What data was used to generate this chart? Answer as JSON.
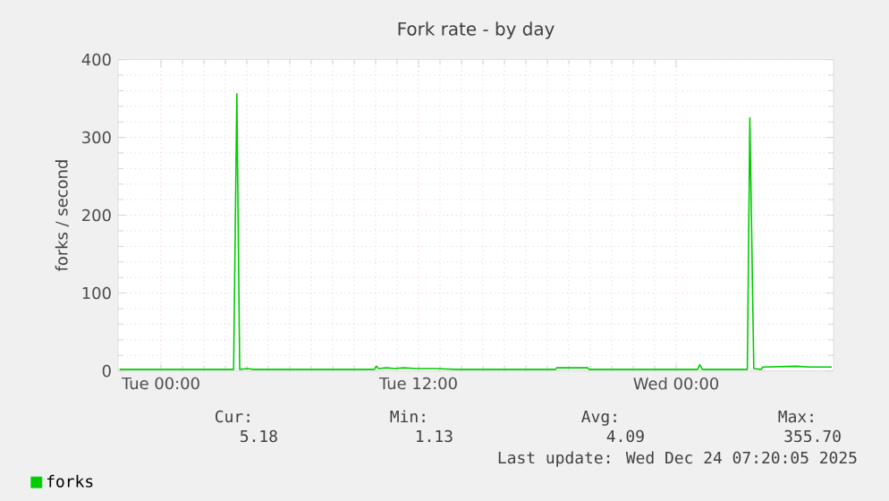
{
  "chart_data": {
    "type": "line",
    "title": "Fork rate - by day",
    "ylabel": "forks / second",
    "x": [
      "2025-12-22T22:04",
      "2025-12-23T03:23",
      "2025-12-23T03:32",
      "2025-12-23T03:40",
      "2025-12-23T04:02",
      "2025-12-23T04:18",
      "2025-12-23T09:56",
      "2025-12-23T10:02",
      "2025-12-23T10:08",
      "2025-12-23T10:30",
      "2025-12-23T10:54",
      "2025-12-23T11:18",
      "2025-12-23T11:54",
      "2025-12-23T12:48",
      "2025-12-23T13:45",
      "2025-12-23T18:23",
      "2025-12-23T18:26",
      "2025-12-23T19:53",
      "2025-12-23T19:56",
      "2025-12-24T01:00",
      "2025-12-24T01:06",
      "2025-12-24T01:13",
      "2025-12-24T03:19",
      "2025-12-24T03:26",
      "2025-12-24T03:37",
      "2025-12-24T03:58",
      "2025-12-24T04:02",
      "2025-12-24T05:36",
      "2025-12-24T06:12",
      "2025-12-24T07:15"
    ],
    "series": [
      {
        "name": "forks",
        "color": "#00cc00",
        "values": [
          2,
          2,
          356,
          2,
          3,
          2,
          2,
          6,
          3,
          4,
          3,
          4,
          3,
          3,
          2,
          2,
          4,
          4,
          2,
          2,
          8,
          2,
          2,
          325,
          3,
          2,
          5,
          6,
          5,
          5
        ]
      }
    ],
    "xlim": [
      "2025-12-22T22:00",
      "2025-12-24T07:20"
    ],
    "ylim": [
      0,
      400
    ],
    "xticks": [
      {
        "value": "2025-12-23T00:00",
        "label": "Tue 00:00"
      },
      {
        "value": "2025-12-23T12:00",
        "label": "Tue 12:00"
      },
      {
        "value": "2025-12-24T00:00",
        "label": "Wed 00:00"
      }
    ],
    "yticks": [
      0,
      100,
      200,
      300,
      400
    ],
    "grid": true,
    "legend": "bottom left",
    "annotations": [
      "Cur:",
      "Min:",
      "Avg:",
      "Max:",
      "5.18",
      "1.13",
      "4.09",
      "355.70",
      "Last update: Wed Dec 24 07:20:05 2025"
    ]
  }
}
